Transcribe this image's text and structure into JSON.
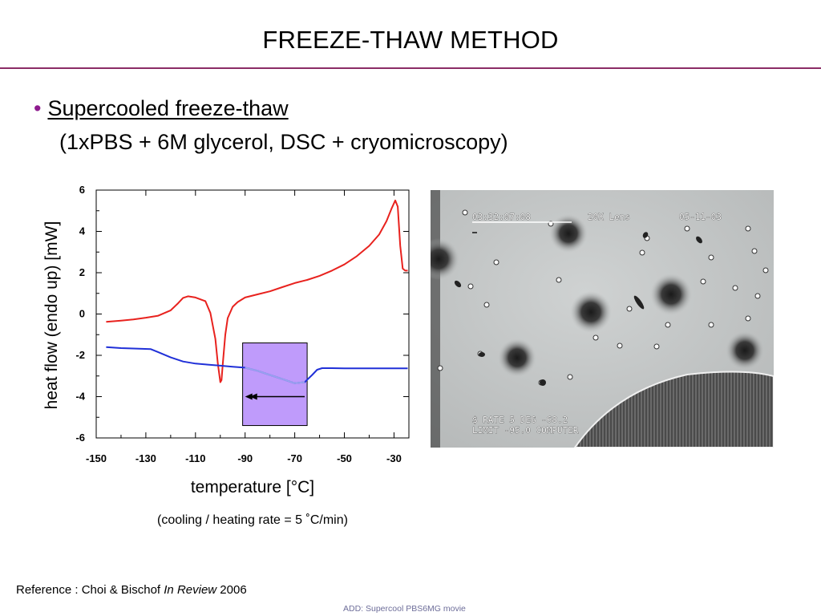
{
  "slide": {
    "title": "FREEZE-THAW METHOD",
    "bullet": "Supercooled freeze-thaw",
    "subtitle": "(1xPBS + 6M glycerol, DSC + cryomicroscopy)",
    "caption": "(cooling / heating rate = 5 ˚C/min)",
    "reference_prefix": "Reference : Choi & Bischof ",
    "reference_journal": "In Review",
    "reference_year": " 2006",
    "footer_note": "ADD: Supercool PBS6MG movie",
    "accent_color": "#8b2c66",
    "bullet_color": "#8e1b8e"
  },
  "micrograph": {
    "time_text": "03:32:07:08",
    "lens_text": "20X Lens",
    "date_text": "05-11-03",
    "rate_text": "$ RATE   5 DEG -68.2",
    "limit_text": "LIMIT -95.0 COMPUTER"
  },
  "chart_data": {
    "type": "line",
    "xlabel": "temperature [°C]",
    "ylabel": "heat flow (endo up) [mW]",
    "xlim": [
      -150,
      -24
    ],
    "ylim": [
      -6,
      6
    ],
    "xticks": [
      -150,
      -130,
      -110,
      -90,
      -70,
      -50,
      -30
    ],
    "yticks": [
      -6,
      -4,
      -2,
      0,
      2,
      4,
      6
    ],
    "grid": false,
    "series": [
      {
        "color": "#e8221e",
        "x": [
          -146,
          -140,
          -135,
          -130,
          -125,
          -120,
          -117,
          -115,
          -113,
          -110,
          -106,
          -104,
          -102,
          -101,
          -100,
          -99.5,
          -99,
          -98,
          -97,
          -95,
          -93,
          -90,
          -85,
          -80,
          -75,
          -70,
          -65,
          -60,
          -55,
          -50,
          -45,
          -40,
          -36,
          -33,
          -31,
          -29.5,
          -28.5,
          -27.5,
          -26.5,
          -25.5,
          -24.5
        ],
        "y": [
          -0.38,
          -0.32,
          -0.26,
          -0.18,
          -0.08,
          0.18,
          0.52,
          0.78,
          0.86,
          0.8,
          0.62,
          0.05,
          -1.2,
          -2.4,
          -3.3,
          -3.2,
          -2.4,
          -1.0,
          -0.2,
          0.35,
          0.58,
          0.8,
          0.95,
          1.1,
          1.3,
          1.5,
          1.65,
          1.85,
          2.1,
          2.4,
          2.8,
          3.3,
          3.85,
          4.5,
          5.1,
          5.5,
          5.2,
          3.3,
          2.2,
          2.1,
          2.1
        ]
      },
      {
        "color": "#2030d8",
        "x": [
          -146,
          -140,
          -135,
          -128,
          -125,
          -120,
          -115,
          -110,
          -105,
          -100,
          -95,
          -90,
          -85,
          -80,
          -75,
          -70,
          -66,
          -63,
          -61,
          -59,
          -55,
          -50,
          -40,
          -30,
          -24.5
        ],
        "y": [
          -1.6,
          -1.65,
          -1.67,
          -1.7,
          -1.85,
          -2.1,
          -2.3,
          -2.4,
          -2.45,
          -2.5,
          -2.55,
          -2.6,
          -2.75,
          -2.95,
          -3.15,
          -3.35,
          -3.3,
          -2.95,
          -2.7,
          -2.62,
          -2.62,
          -2.63,
          -2.63,
          -2.63,
          -2.63
        ]
      },
      {
        "color": "#9aa2ee",
        "x": [
          -90,
          -85,
          -80,
          -75,
          -70,
          -66
        ],
        "y": [
          -2.6,
          -2.75,
          -2.95,
          -3.15,
          -3.35,
          -3.3
        ]
      }
    ],
    "highlight": {
      "x": [
        -91,
        -65
      ],
      "y": [
        -5.4,
        -1.4
      ],
      "color": "#bf9bfb"
    },
    "arrow": {
      "from_x": -66,
      "to_x": -90,
      "y": -4.0
    }
  }
}
